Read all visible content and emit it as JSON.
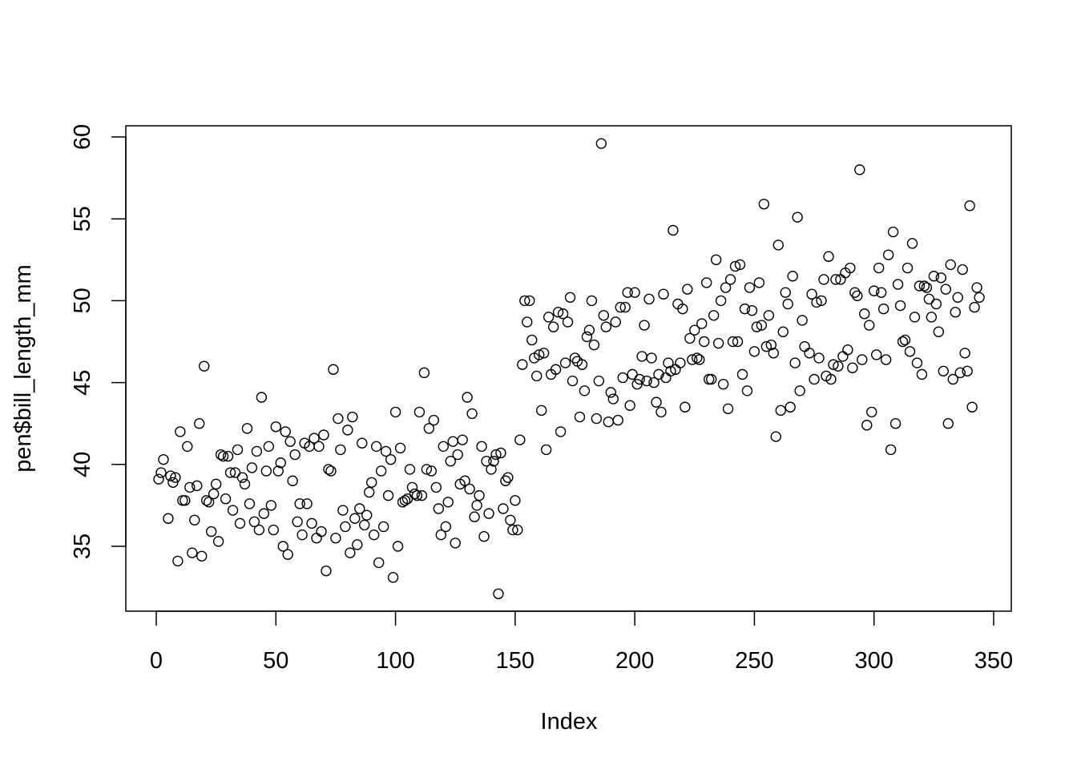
{
  "chart_data": {
    "type": "scatter",
    "title": "",
    "xlabel": "Index",
    "ylabel": "pen$bill_length_mm",
    "xlim": [
      0,
      350
    ],
    "ylim": [
      31,
      60.5
    ],
    "x_ticks": [
      0,
      50,
      100,
      150,
      200,
      250,
      300,
      350
    ],
    "y_ticks": [
      35,
      40,
      45,
      50,
      55,
      60
    ],
    "grid": false,
    "marker": "open-circle",
    "marker_color": "#000000",
    "x": "index 1..344",
    "values": [
      39.1,
      39.5,
      40.3,
      null,
      36.7,
      39.3,
      38.9,
      39.2,
      34.1,
      42.0,
      37.8,
      37.8,
      41.1,
      38.6,
      34.6,
      36.6,
      38.7,
      42.5,
      34.4,
      46.0,
      37.8,
      37.7,
      35.9,
      38.2,
      38.8,
      35.3,
      40.6,
      40.5,
      37.9,
      40.5,
      39.5,
      37.2,
      39.5,
      40.9,
      36.4,
      39.2,
      38.8,
      42.2,
      37.6,
      39.8,
      36.5,
      40.8,
      36.0,
      44.1,
      37.0,
      39.6,
      41.1,
      37.5,
      36.0,
      42.3,
      39.6,
      40.1,
      35.0,
      42.0,
      34.5,
      41.4,
      39.0,
      40.6,
      36.5,
      37.6,
      35.7,
      41.3,
      37.6,
      41.1,
      36.4,
      41.6,
      35.5,
      41.1,
      35.9,
      41.8,
      33.5,
      39.7,
      39.6,
      45.8,
      35.5,
      42.8,
      40.9,
      37.2,
      36.2,
      42.1,
      34.6,
      42.9,
      36.7,
      35.1,
      37.3,
      41.3,
      36.3,
      36.9,
      38.3,
      38.9,
      35.7,
      41.1,
      34.0,
      39.6,
      36.2,
      40.8,
      38.1,
      40.3,
      33.1,
      43.2,
      35.0,
      41.0,
      37.7,
      37.8,
      37.9,
      39.7,
      38.6,
      38.2,
      38.1,
      43.2,
      38.1,
      45.6,
      39.7,
      42.2,
      39.6,
      42.7,
      38.6,
      37.3,
      35.7,
      41.1,
      36.2,
      37.7,
      40.2,
      41.4,
      35.2,
      40.6,
      38.8,
      41.5,
      39.0,
      44.1,
      38.5,
      43.1,
      36.8,
      37.5,
      38.1,
      41.1,
      35.6,
      40.2,
      37.0,
      39.7,
      40.2,
      40.6,
      32.1,
      40.7,
      37.3,
      39.0,
      39.2,
      36.6,
      36.0,
      37.8,
      36.0,
      41.5,
      46.1,
      50.0,
      48.7,
      50.0,
      47.6,
      46.5,
      45.4,
      46.7,
      43.3,
      46.8,
      40.9,
      49.0,
      45.5,
      48.4,
      45.8,
      49.3,
      42.0,
      49.2,
      46.2,
      48.7,
      50.2,
      45.1,
      46.5,
      46.3,
      42.9,
      46.1,
      44.5,
      47.8,
      48.2,
      50.0,
      47.3,
      42.8,
      45.1,
      59.6,
      49.1,
      48.4,
      42.6,
      44.4,
      44.0,
      48.7,
      42.7,
      49.6,
      45.3,
      49.6,
      50.5,
      43.6,
      45.5,
      50.5,
      44.9,
      45.2,
      46.6,
      48.5,
      45.1,
      50.1,
      46.5,
      45.0,
      43.8,
      45.5,
      43.2,
      50.4,
      45.3,
      46.2,
      45.7,
      54.3,
      45.8,
      49.8,
      46.2,
      49.5,
      43.5,
      50.7,
      47.7,
      46.4,
      48.2,
      46.5,
      46.4,
      48.6,
      47.5,
      51.1,
      45.2,
      45.2,
      49.1,
      52.5,
      47.4,
      50.0,
      44.9,
      50.8,
      43.4,
      51.3,
      47.5,
      52.1,
      47.5,
      52.2,
      45.5,
      49.5,
      44.5,
      50.8,
      49.4,
      46.9,
      48.4,
      51.1,
      48.5,
      55.9,
      47.2,
      49.1,
      47.3,
      46.8,
      41.7,
      53.4,
      43.3,
      48.1,
      50.5,
      49.8,
      43.5,
      51.5,
      46.2,
      55.1,
      44.5,
      48.8,
      47.2,
      null,
      46.8,
      50.4,
      45.2,
      49.9,
      46.5,
      50.0,
      51.3,
      45.4,
      52.7,
      45.2,
      46.1,
      51.3,
      46.0,
      51.3,
      46.6,
      51.7,
      47.0,
      52.0,
      45.9,
      50.5,
      50.3,
      58.0,
      46.4,
      49.2,
      42.4,
      48.5,
      43.2,
      50.6,
      46.7,
      52.0,
      50.5,
      49.5,
      46.4,
      52.8,
      40.9,
      54.2,
      42.5,
      51.0,
      49.7,
      47.5,
      47.6,
      52.0,
      46.9,
      53.5,
      49.0,
      46.2,
      50.9,
      45.5,
      50.9,
      50.8,
      50.1,
      49.0,
      51.5,
      49.8,
      48.1,
      51.4,
      45.7,
      50.7,
      42.5,
      52.2,
      45.2,
      49.3,
      50.2,
      45.6,
      51.9,
      46.8,
      45.7,
      55.8,
      43.5,
      49.6,
      50.8,
      50.2
    ]
  }
}
